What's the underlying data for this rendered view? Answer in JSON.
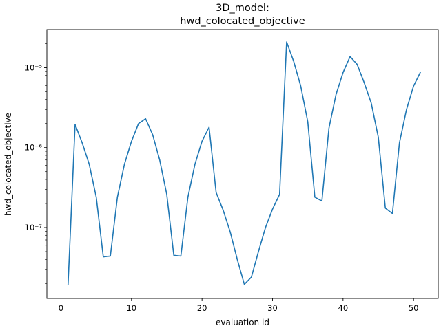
{
  "chart_data": {
    "type": "line",
    "title_line1": "3D_model:",
    "title_line2": "hwd_colocated_objective",
    "xlabel": "evaluation id",
    "ylabel": "hwd_colocated_objective",
    "xlim": [
      -2,
      53.5
    ],
    "ylim": [
      1.3e-08,
      3e-05
    ],
    "yscale": "log",
    "grid": false,
    "x_ticks": [
      0,
      10,
      20,
      30,
      40,
      50
    ],
    "x_tick_labels": [
      "0",
      "10",
      "20",
      "30",
      "40",
      "50"
    ],
    "y_ticks": [
      1e-07,
      1e-06,
      1e-05
    ],
    "y_tick_labels": [
      "10⁻⁷",
      "10⁻⁶",
      "10⁻⁵"
    ],
    "series": [
      {
        "color": "#1f77b4",
        "x": [
          1,
          2,
          3,
          4,
          5,
          6,
          7,
          8,
          9,
          10,
          11,
          12,
          13,
          14,
          15,
          16,
          17,
          18,
          19,
          20,
          21,
          22,
          23,
          24,
          25,
          26,
          27,
          28,
          29,
          30,
          31,
          32,
          33,
          34,
          35,
          36,
          37,
          38,
          39,
          40,
          41,
          42,
          43,
          44,
          45,
          46,
          47,
          48,
          49,
          50,
          51
        ],
        "y": [
          1.9e-08,
          1.95e-06,
          1.15e-06,
          6.2e-07,
          2.4e-07,
          4.3e-08,
          4.4e-08,
          2.4e-07,
          6.2e-07,
          1.2e-06,
          2e-06,
          2.3e-06,
          1.45e-06,
          7e-07,
          2.6e-07,
          4.5e-08,
          4.4e-08,
          2.4e-07,
          6.2e-07,
          1.2e-06,
          1.8e-06,
          2.75e-07,
          1.65e-07,
          8.8e-08,
          4e-08,
          1.95e-08,
          2.4e-08,
          5e-08,
          1e-07,
          1.7e-07,
          2.6e-07,
          2.1e-05,
          1.2e-05,
          5.9e-06,
          2.1e-06,
          2.4e-07,
          2.15e-07,
          1.75e-06,
          4.6e-06,
          8.7e-06,
          1.38e-05,
          1.1e-05,
          6.5e-06,
          3.6e-06,
          1.35e-06,
          1.75e-07,
          1.5e-07,
          1.15e-06,
          3e-06,
          5.9e-06,
          8.9e-06
        ]
      }
    ]
  }
}
